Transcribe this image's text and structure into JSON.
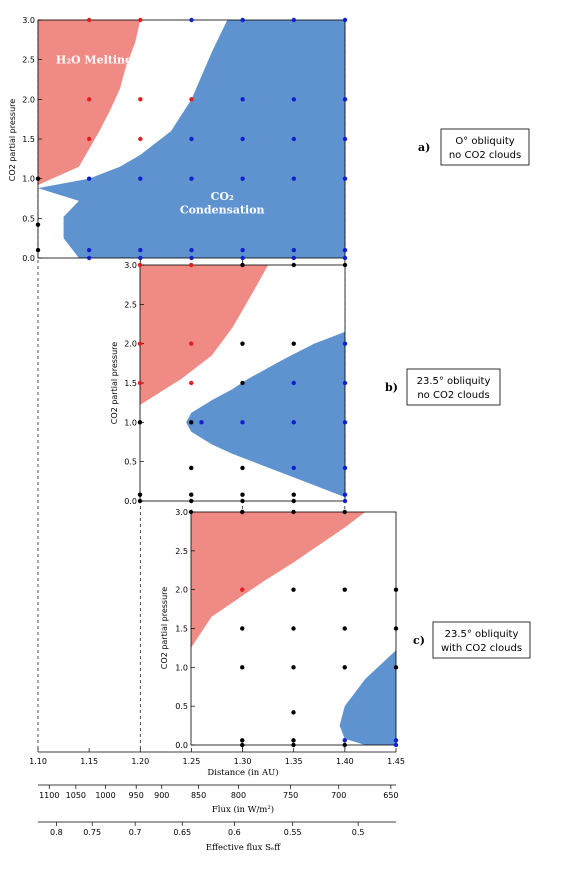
{
  "colors": {
    "melt": "#f08a84",
    "cond": "#5e93cf",
    "red_dot": "#e02020",
    "blue_dot": "#1020d0",
    "black_dot": "#000000"
  },
  "chart_data": [
    {
      "type": "scatter",
      "panel": "a)",
      "description": [
        "O° obliquity",
        "no CO2 clouds"
      ],
      "ylabel": "CO2 partial pressure",
      "xlim": [
        1.1,
        1.4
      ],
      "ylim": [
        0.0,
        3.0
      ],
      "yticks": [
        "0.0",
        "0.5",
        "1.0",
        "1.5",
        "2.0",
        "2.5",
        "3.0"
      ],
      "annotations": [
        {
          "text": "H₂O Melting",
          "x": 1.155,
          "y": 2.45
        },
        {
          "text": "CO₂",
          "x": 1.28,
          "y": 0.73
        },
        {
          "text": "Condensation",
          "x": 1.28,
          "y": 0.56
        }
      ],
      "melt_region": [
        [
          1.1,
          3.0
        ],
        [
          1.2,
          3.0
        ],
        [
          1.195,
          2.72
        ],
        [
          1.185,
          2.37
        ],
        [
          1.18,
          2.13
        ],
        [
          1.17,
          1.85
        ],
        [
          1.16,
          1.6
        ],
        [
          1.14,
          1.15
        ],
        [
          1.1,
          0.92
        ]
      ],
      "cond_region": [
        [
          1.1,
          0.88
        ],
        [
          1.15,
          1.0
        ],
        [
          1.18,
          1.15
        ],
        [
          1.2,
          1.3
        ],
        [
          1.23,
          1.6
        ],
        [
          1.25,
          2.0
        ],
        [
          1.27,
          2.6
        ],
        [
          1.285,
          3.0
        ],
        [
          1.4,
          3.0
        ],
        [
          1.4,
          0.0
        ],
        [
          1.14,
          0.0
        ],
        [
          1.125,
          0.25
        ],
        [
          1.125,
          0.52
        ],
        [
          1.14,
          0.72
        ],
        [
          1.1,
          0.88
        ]
      ],
      "points": [
        {
          "x": 1.15,
          "y": 3.0,
          "c": "red"
        },
        {
          "x": 1.2,
          "y": 3.0,
          "c": "red"
        },
        {
          "x": 1.25,
          "y": 3.0,
          "c": "blue"
        },
        {
          "x": 1.3,
          "y": 3.0,
          "c": "blue"
        },
        {
          "x": 1.35,
          "y": 3.0,
          "c": "blue"
        },
        {
          "x": 1.4,
          "y": 3.0,
          "c": "blue"
        },
        {
          "x": 1.15,
          "y": 2.0,
          "c": "red"
        },
        {
          "x": 1.2,
          "y": 2.0,
          "c": "red"
        },
        {
          "x": 1.25,
          "y": 2.0,
          "c": "red"
        },
        {
          "x": 1.3,
          "y": 2.0,
          "c": "blue"
        },
        {
          "x": 1.35,
          "y": 2.0,
          "c": "blue"
        },
        {
          "x": 1.4,
          "y": 2.0,
          "c": "blue"
        },
        {
          "x": 1.15,
          "y": 1.5,
          "c": "red"
        },
        {
          "x": 1.2,
          "y": 1.5,
          "c": "red"
        },
        {
          "x": 1.25,
          "y": 1.5,
          "c": "blue"
        },
        {
          "x": 1.3,
          "y": 1.5,
          "c": "blue"
        },
        {
          "x": 1.35,
          "y": 1.5,
          "c": "blue"
        },
        {
          "x": 1.4,
          "y": 1.5,
          "c": "blue"
        },
        {
          "x": 1.1,
          "y": 1.0,
          "c": "black"
        },
        {
          "x": 1.15,
          "y": 1.0,
          "c": "blue"
        },
        {
          "x": 1.2,
          "y": 1.0,
          "c": "blue"
        },
        {
          "x": 1.25,
          "y": 1.0,
          "c": "blue"
        },
        {
          "x": 1.3,
          "y": 1.0,
          "c": "blue"
        },
        {
          "x": 1.35,
          "y": 1.0,
          "c": "blue"
        },
        {
          "x": 1.4,
          "y": 1.0,
          "c": "blue"
        },
        {
          "x": 1.1,
          "y": 0.42,
          "c": "black"
        },
        {
          "x": 1.1,
          "y": 0.1,
          "c": "black"
        },
        {
          "x": 1.15,
          "y": 0.1,
          "c": "blue"
        },
        {
          "x": 1.2,
          "y": 0.1,
          "c": "blue"
        },
        {
          "x": 1.25,
          "y": 0.1,
          "c": "blue"
        },
        {
          "x": 1.3,
          "y": 0.1,
          "c": "blue"
        },
        {
          "x": 1.35,
          "y": 0.1,
          "c": "blue"
        },
        {
          "x": 1.4,
          "y": 0.1,
          "c": "blue"
        },
        {
          "x": 1.15,
          "y": 0.0,
          "c": "blue"
        },
        {
          "x": 1.2,
          "y": 0.0,
          "c": "blue"
        },
        {
          "x": 1.25,
          "y": 0.0,
          "c": "blue"
        },
        {
          "x": 1.3,
          "y": 0.0,
          "c": "blue"
        },
        {
          "x": 1.35,
          "y": 0.0,
          "c": "blue"
        },
        {
          "x": 1.4,
          "y": 0.0,
          "c": "blue"
        }
      ]
    },
    {
      "type": "scatter",
      "panel": "b)",
      "description": [
        "23.5° obliquity",
        "no CO2 clouds"
      ],
      "ylabel": "CO2 partial pressure",
      "xlim": [
        1.2,
        1.4
      ],
      "ylim": [
        0.0,
        3.0
      ],
      "yticks": [
        "0.0",
        "0.5",
        "1.0",
        "1.5",
        "2.0",
        "2.5",
        "3.0"
      ],
      "melt_region": [
        [
          1.2,
          3.0
        ],
        [
          1.325,
          3.0
        ],
        [
          1.31,
          2.65
        ],
        [
          1.29,
          2.2
        ],
        [
          1.27,
          1.85
        ],
        [
          1.24,
          1.55
        ],
        [
          1.2,
          1.22
        ]
      ],
      "cond_region": [
        [
          1.4,
          2.15
        ],
        [
          1.37,
          2.0
        ],
        [
          1.34,
          1.8
        ],
        [
          1.305,
          1.55
        ],
        [
          1.29,
          1.42
        ],
        [
          1.27,
          1.28
        ],
        [
          1.25,
          1.12
        ],
        [
          1.245,
          1.0
        ],
        [
          1.25,
          0.88
        ],
        [
          1.27,
          0.72
        ],
        [
          1.29,
          0.6
        ],
        [
          1.32,
          0.45
        ],
        [
          1.35,
          0.3
        ],
        [
          1.38,
          0.15
        ],
        [
          1.4,
          0.05
        ]
      ],
      "points": [
        {
          "x": 1.2,
          "y": 3.0,
          "c": "red"
        },
        {
          "x": 1.25,
          "y": 3.0,
          "c": "red"
        },
        {
          "x": 1.3,
          "y": 3.0,
          "c": "black"
        },
        {
          "x": 1.35,
          "y": 3.0,
          "c": "black"
        },
        {
          "x": 1.4,
          "y": 3.0,
          "c": "black"
        },
        {
          "x": 1.2,
          "y": 2.0,
          "c": "red"
        },
        {
          "x": 1.25,
          "y": 2.0,
          "c": "red"
        },
        {
          "x": 1.3,
          "y": 2.0,
          "c": "black"
        },
        {
          "x": 1.35,
          "y": 2.0,
          "c": "black"
        },
        {
          "x": 1.4,
          "y": 2.0,
          "c": "blue"
        },
        {
          "x": 1.2,
          "y": 1.5,
          "c": "red"
        },
        {
          "x": 1.25,
          "y": 1.5,
          "c": "red"
        },
        {
          "x": 1.3,
          "y": 1.5,
          "c": "black"
        },
        {
          "x": 1.35,
          "y": 1.5,
          "c": "blue"
        },
        {
          "x": 1.4,
          "y": 1.5,
          "c": "blue"
        },
        {
          "x": 1.2,
          "y": 1.0,
          "c": "black"
        },
        {
          "x": 1.25,
          "y": 1.0,
          "c": "black"
        },
        {
          "x": 1.26,
          "y": 1.0,
          "c": "blue"
        },
        {
          "x": 1.3,
          "y": 1.0,
          "c": "blue"
        },
        {
          "x": 1.35,
          "y": 1.0,
          "c": "blue"
        },
        {
          "x": 1.4,
          "y": 1.0,
          "c": "blue"
        },
        {
          "x": 1.25,
          "y": 0.42,
          "c": "black"
        },
        {
          "x": 1.3,
          "y": 0.42,
          "c": "black"
        },
        {
          "x": 1.35,
          "y": 0.42,
          "c": "blue"
        },
        {
          "x": 1.4,
          "y": 0.42,
          "c": "blue"
        },
        {
          "x": 1.2,
          "y": 0.08,
          "c": "black"
        },
        {
          "x": 1.25,
          "y": 0.08,
          "c": "black"
        },
        {
          "x": 1.3,
          "y": 0.08,
          "c": "black"
        },
        {
          "x": 1.35,
          "y": 0.08,
          "c": "black"
        },
        {
          "x": 1.4,
          "y": 0.08,
          "c": "blue"
        },
        {
          "x": 1.2,
          "y": 0.0,
          "c": "black"
        },
        {
          "x": 1.25,
          "y": 0.0,
          "c": "black"
        },
        {
          "x": 1.3,
          "y": 0.0,
          "c": "black"
        },
        {
          "x": 1.35,
          "y": 0.0,
          "c": "black"
        },
        {
          "x": 1.4,
          "y": 0.0,
          "c": "blue"
        }
      ]
    },
    {
      "type": "scatter",
      "panel": "c)",
      "description": [
        "23.5° obliquity",
        "with CO2 clouds"
      ],
      "ylabel": "CO2 partial pressure",
      "xlim": [
        1.25,
        1.45
      ],
      "ylim": [
        0.0,
        3.0
      ],
      "yticks": [
        "0.0",
        "0.5",
        "1.0",
        "1.5",
        "2.0",
        "2.5",
        "3.0"
      ],
      "melt_region": [
        [
          1.25,
          3.0
        ],
        [
          1.42,
          3.0
        ],
        [
          1.4,
          2.8
        ],
        [
          1.38,
          2.62
        ],
        [
          1.35,
          2.35
        ],
        [
          1.32,
          2.1
        ],
        [
          1.3,
          1.92
        ],
        [
          1.27,
          1.65
        ],
        [
          1.25,
          1.25
        ]
      ],
      "cond_region": [
        [
          1.45,
          1.22
        ],
        [
          1.42,
          0.85
        ],
        [
          1.4,
          0.5
        ],
        [
          1.395,
          0.25
        ],
        [
          1.4,
          0.08
        ],
        [
          1.42,
          0.0
        ],
        [
          1.45,
          0.0
        ]
      ],
      "points": [
        {
          "x": 1.25,
          "y": 3.0,
          "c": "black"
        },
        {
          "x": 1.3,
          "y": 3.0,
          "c": "black"
        },
        {
          "x": 1.35,
          "y": 3.0,
          "c": "black"
        },
        {
          "x": 1.4,
          "y": 3.0,
          "c": "black"
        },
        {
          "x": 1.3,
          "y": 2.0,
          "c": "red"
        },
        {
          "x": 1.35,
          "y": 2.0,
          "c": "black"
        },
        {
          "x": 1.4,
          "y": 2.0,
          "c": "black"
        },
        {
          "x": 1.45,
          "y": 2.0,
          "c": "black"
        },
        {
          "x": 1.3,
          "y": 1.5,
          "c": "black"
        },
        {
          "x": 1.35,
          "y": 1.5,
          "c": "black"
        },
        {
          "x": 1.4,
          "y": 1.5,
          "c": "black"
        },
        {
          "x": 1.45,
          "y": 1.5,
          "c": "black"
        },
        {
          "x": 1.3,
          "y": 1.0,
          "c": "black"
        },
        {
          "x": 1.35,
          "y": 1.0,
          "c": "black"
        },
        {
          "x": 1.4,
          "y": 1.0,
          "c": "black"
        },
        {
          "x": 1.45,
          "y": 1.0,
          "c": "black"
        },
        {
          "x": 1.35,
          "y": 0.42,
          "c": "black"
        },
        {
          "x": 1.3,
          "y": 0.06,
          "c": "black"
        },
        {
          "x": 1.35,
          "y": 0.06,
          "c": "black"
        },
        {
          "x": 1.4,
          "y": 0.06,
          "c": "blue"
        },
        {
          "x": 1.45,
          "y": 0.06,
          "c": "blue"
        },
        {
          "x": 1.3,
          "y": 0.0,
          "c": "black"
        },
        {
          "x": 1.35,
          "y": 0.0,
          "c": "black"
        },
        {
          "x": 1.4,
          "y": 0.0,
          "c": "black"
        },
        {
          "x": 1.45,
          "y": 0.0,
          "c": "blue"
        }
      ]
    }
  ],
  "shared_axes": {
    "distance": {
      "label": "Distance (in AU)",
      "range": [
        1.1,
        1.45
      ],
      "ticks": [
        {
          "v": 1.1,
          "t": "1.10"
        },
        {
          "v": 1.15,
          "t": "1.15"
        },
        {
          "v": 1.2,
          "t": "1.20"
        },
        {
          "v": 1.25,
          "t": "1.25"
        },
        {
          "v": 1.3,
          "t": "1.30"
        },
        {
          "v": 1.35,
          "t": "1.35"
        },
        {
          "v": 1.4,
          "t": "1.40"
        },
        {
          "v": 1.45,
          "t": "1.45"
        }
      ]
    },
    "flux": {
      "label": "Flux (in W/m²)",
      "ticks": [
        {
          "v": 1.111,
          "t": "1100"
        },
        {
          "v": 1.137,
          "t": "1050"
        },
        {
          "v": 1.166,
          "t": "1000"
        },
        {
          "v": 1.196,
          "t": "950"
        },
        {
          "v": 1.221,
          "t": "900"
        },
        {
          "v": 1.257,
          "t": "850"
        },
        {
          "v": 1.296,
          "t": "800"
        },
        {
          "v": 1.347,
          "t": "750"
        },
        {
          "v": 1.394,
          "t": "700"
        },
        {
          "v": 1.445,
          "t": "650"
        }
      ]
    },
    "eff_flux": {
      "label": "Effective flux  Sₑff",
      "ticks": [
        {
          "v": 1.118,
          "t": "0.8"
        },
        {
          "v": 1.153,
          "t": "0.75"
        },
        {
          "v": 1.195,
          "t": "0.7"
        },
        {
          "v": 1.241,
          "t": "0.65"
        },
        {
          "v": 1.292,
          "t": "0.6"
        },
        {
          "v": 1.349,
          "t": "0.55"
        },
        {
          "v": 1.413,
          "t": "0.5"
        }
      ]
    },
    "guide_lines": [
      1.1,
      1.2,
      1.3,
      1.4
    ]
  }
}
